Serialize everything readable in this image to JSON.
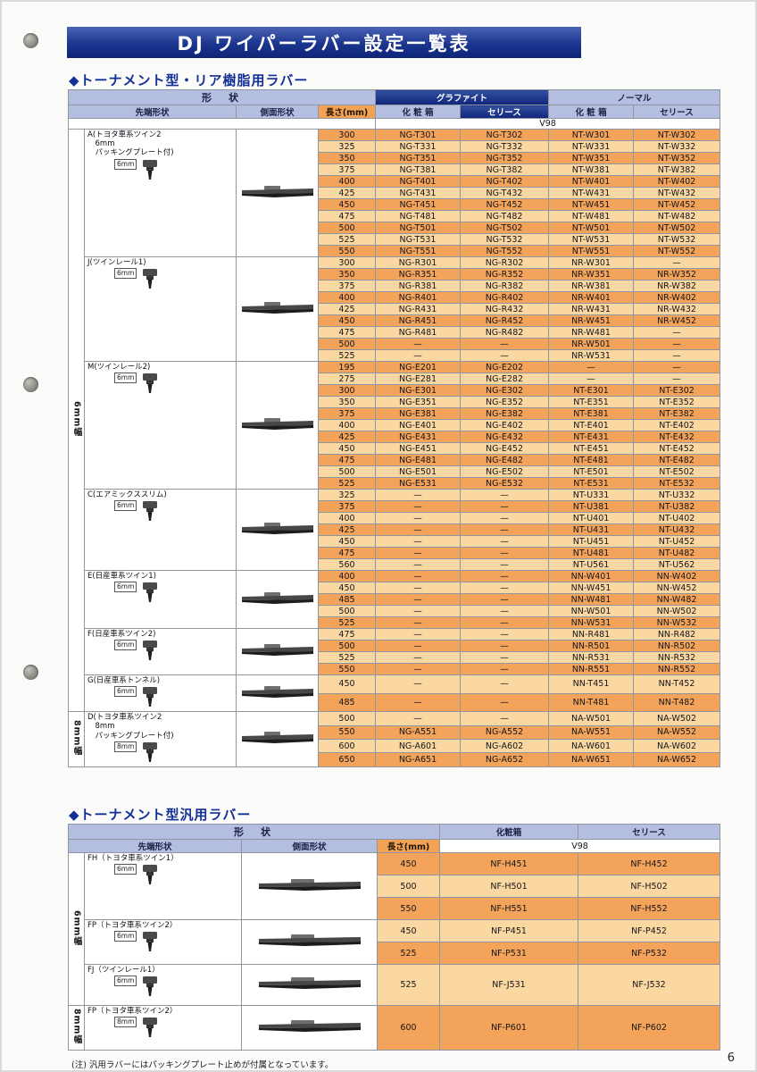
{
  "page": {
    "title": "DJ ワイパーラバー設定一覧表",
    "page_number": "6",
    "footnote": "(注) 汎用ラバーにはパッキングプレート止めが付属となっています。"
  },
  "colors": {
    "title_bar_blue": "#1b358f",
    "header_periwinkle": "#b3bee1",
    "graphite_header_blue": "#10257c",
    "length_header_orange": "#f2a254",
    "row_orange_dark": "#f3a45a",
    "row_orange_light": "#fbd8a1"
  },
  "section1": {
    "heading": "◆トーナメント型・リア樹脂用ラバー",
    "table": {
      "headers": {
        "shape": "形　状",
        "tip": "先端形状",
        "side": "側面形状",
        "length": "長さ(mm)",
        "graphite": "グラファイト",
        "normal": "ノーマル",
        "box": "化 粧 箱",
        "series": "セリース",
        "v98": "V98"
      },
      "width_groups": [
        {
          "label": "6mm幅",
          "sections": [
            "A",
            "J",
            "M",
            "C",
            "E",
            "F",
            "G"
          ]
        },
        {
          "label": "8mm幅",
          "sections": [
            "D"
          ]
        }
      ],
      "sections": [
        {
          "id": "A",
          "tag": "6mm",
          "tip_label": "A(トヨタ車系ツイン2\n　6mm\n　パッキングプレート付)",
          "rows": [
            [
              300,
              "NG-T301",
              "NG-T302",
              "NT-W301",
              "NT-W302"
            ],
            [
              325,
              "NG-T331",
              "NG-T332",
              "NT-W331",
              "NT-W332"
            ],
            [
              350,
              "NG-T351",
              "NG-T352",
              "NT-W351",
              "NT-W352"
            ],
            [
              375,
              "NG-T381",
              "NG-T382",
              "NT-W381",
              "NT-W382"
            ],
            [
              400,
              "NG-T401",
              "NG-T402",
              "NT-W401",
              "NT-W402"
            ],
            [
              425,
              "NG-T431",
              "NG-T432",
              "NT-W431",
              "NT-W432"
            ],
            [
              450,
              "NG-T451",
              "NG-T452",
              "NT-W451",
              "NT-W452"
            ],
            [
              475,
              "NG-T481",
              "NG-T482",
              "NT-W481",
              "NT-W482"
            ],
            [
              500,
              "NG-T501",
              "NG-T502",
              "NT-W501",
              "NT-W502"
            ],
            [
              525,
              "NG-T531",
              "NG-T532",
              "NT-W531",
              "NT-W532"
            ],
            [
              550,
              "NG-T551",
              "NG-T552",
              "NT-W551",
              "NT-W552"
            ]
          ]
        },
        {
          "id": "J",
          "tag": "6mm",
          "tip_label": "J(ツインレール1)",
          "rows": [
            [
              300,
              "NG-R301",
              "NG-R302",
              "NR-W301",
              "—"
            ],
            [
              350,
              "NG-R351",
              "NG-R352",
              "NR-W351",
              "NR-W352"
            ],
            [
              375,
              "NG-R381",
              "NG-R382",
              "NR-W381",
              "NR-W382"
            ],
            [
              400,
              "NG-R401",
              "NG-R402",
              "NR-W401",
              "NR-W402"
            ],
            [
              425,
              "NG-R431",
              "NG-R432",
              "NR-W431",
              "NR-W432"
            ],
            [
              450,
              "NG-R451",
              "NG-R452",
              "NR-W451",
              "NR-W452"
            ],
            [
              475,
              "NG-R481",
              "NG-R482",
              "NR-W481",
              "—"
            ],
            [
              500,
              "—",
              "—",
              "NR-W501",
              "—"
            ],
            [
              525,
              "—",
              "—",
              "NR-W531",
              "—"
            ]
          ]
        },
        {
          "id": "M",
          "tag": "6mm",
          "tip_label": "M(ツインレール2)",
          "rows": [
            [
              195,
              "NG-E201",
              "NG-E202",
              "—",
              "—"
            ],
            [
              275,
              "NG-E281",
              "NG-E282",
              "—",
              "—"
            ],
            [
              300,
              "NG-E301",
              "NG-E302",
              "NT-E301",
              "NT-E302"
            ],
            [
              350,
              "NG-E351",
              "NG-E352",
              "NT-E351",
              "NT-E352"
            ],
            [
              375,
              "NG-E381",
              "NG-E382",
              "NT-E381",
              "NT-E382"
            ],
            [
              400,
              "NG-E401",
              "NG-E402",
              "NT-E401",
              "NT-E402"
            ],
            [
              425,
              "NG-E431",
              "NG-E432",
              "NT-E431",
              "NT-E432"
            ],
            [
              450,
              "NG-E451",
              "NG-E452",
              "NT-E451",
              "NT-E452"
            ],
            [
              475,
              "NG-E481",
              "NG-E482",
              "NT-E481",
              "NT-E482"
            ],
            [
              500,
              "NG-E501",
              "NG-E502",
              "NT-E501",
              "NT-E502"
            ],
            [
              525,
              "NG-E531",
              "NG-E532",
              "NT-E531",
              "NT-E532"
            ]
          ]
        },
        {
          "id": "C",
          "tag": "6mm",
          "tip_label": "C(エアミックススリム)",
          "rows": [
            [
              325,
              "—",
              "—",
              "NT-U331",
              "NT-U332"
            ],
            [
              375,
              "—",
              "—",
              "NT-U381",
              "NT-U382"
            ],
            [
              400,
              "—",
              "—",
              "NT-U401",
              "NT-U402"
            ],
            [
              425,
              "—",
              "—",
              "NT-U431",
              "NT-U432"
            ],
            [
              450,
              "—",
              "—",
              "NT-U451",
              "NT-U452"
            ],
            [
              475,
              "—",
              "—",
              "NT-U481",
              "NT-U482"
            ],
            [
              560,
              "—",
              "—",
              "NT-U561",
              "NT-U562"
            ]
          ]
        },
        {
          "id": "E",
          "tag": "6mm",
          "tip_label": "E(日産車系ツイン1)",
          "rows": [
            [
              400,
              "—",
              "—",
              "NN-W401",
              "NN-W402"
            ],
            [
              450,
              "—",
              "—",
              "NN-W451",
              "NN-W452"
            ],
            [
              485,
              "—",
              "—",
              "NN-W481",
              "NN-W482"
            ],
            [
              500,
              "—",
              "—",
              "NN-W501",
              "NN-W502"
            ],
            [
              525,
              "—",
              "—",
              "NN-W531",
              "NN-W532"
            ]
          ]
        },
        {
          "id": "F",
          "tag": "6mm",
          "tip_label": "F(日産車系ツイン2)",
          "rows": [
            [
              475,
              "—",
              "—",
              "NN-R481",
              "NN-R482"
            ],
            [
              500,
              "—",
              "—",
              "NN-R501",
              "NN-R502"
            ],
            [
              525,
              "—",
              "—",
              "NN-R531",
              "NN-R532"
            ],
            [
              550,
              "—",
              "—",
              "NN-R551",
              "NN-R552"
            ]
          ]
        },
        {
          "id": "G",
          "tag": "6mm",
          "row_class": "tall",
          "tip_label": "G(日産車系トンネル)",
          "rows": [
            [
              450,
              "—",
              "—",
              "NN-T451",
              "NN-T452"
            ],
            [
              485,
              "—",
              "—",
              "NN-T481",
              "NN-T482"
            ]
          ]
        },
        {
          "id": "D",
          "tag": "8mm",
          "tip_label": "D(トヨタ車系ツイン2\n　8mm\n　パッキングプレート付)",
          "rows": [
            [
              500,
              "—",
              "—",
              "NA-W501",
              "NA-W502"
            ],
            [
              550,
              "NG-A551",
              "NG-A552",
              "NA-W551",
              "NA-W552"
            ],
            [
              600,
              "NG-A601",
              "NG-A602",
              "NA-W601",
              "NA-W602"
            ],
            [
              650,
              "NG-A651",
              "NG-A652",
              "NA-W651",
              "NA-W652"
            ]
          ]
        }
      ]
    }
  },
  "section2": {
    "heading": "◆トーナメント型汎用ラバー",
    "table": {
      "headers": {
        "shape": "形　状",
        "tip": "先端形状",
        "side": "側面形状",
        "length": "長さ(mm)",
        "box": "化粧箱",
        "series": "セリース",
        "v98": "V98"
      },
      "width_groups": [
        {
          "label": "6mm幅",
          "sections": [
            "FH",
            "FP6",
            "FJ"
          ]
        },
        {
          "label": "8mm幅",
          "sections": [
            "FP8"
          ]
        }
      ],
      "sections": [
        {
          "id": "FH",
          "tag": "6mm",
          "row_class": "h25",
          "tip_label": "FH（トヨタ車系ツイン1）",
          "rows": [
            [
              450,
              "NF-H451",
              "NF-H452"
            ],
            [
              500,
              "NF-H501",
              "NF-H502"
            ],
            [
              550,
              "NF-H551",
              "NF-H552"
            ]
          ]
        },
        {
          "id": "FP6",
          "tag": "6mm",
          "row_class": "h25",
          "tip_label": "FP（トヨタ車系ツイン2）",
          "rows": [
            [
              450,
              "NF-P451",
              "NF-P452"
            ],
            [
              525,
              "NF-P531",
              "NF-P532"
            ]
          ]
        },
        {
          "id": "FJ",
          "tag": "6mm",
          "row_class": "h46",
          "tip_label": "FJ（ツインレール1）",
          "rows": [
            [
              525,
              "NF-J531",
              "NF-J532"
            ]
          ]
        },
        {
          "id": "FP8",
          "tag": "8mm",
          "row_class": "h50",
          "tip_label": "FP（トヨタ車系ツイン2）",
          "rows": [
            [
              600,
              "NF-P601",
              "NF-P602"
            ]
          ]
        }
      ]
    }
  }
}
